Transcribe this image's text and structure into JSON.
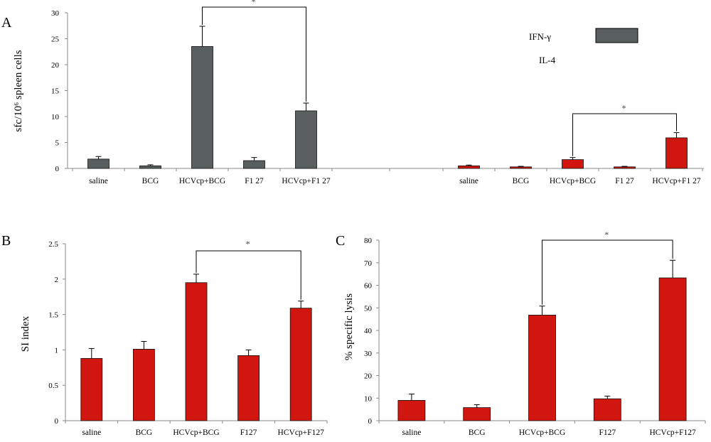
{
  "chart_data": [
    {
      "panel": "A",
      "type": "bar",
      "ylabel": "sfc/10⁶ spleen cells",
      "ylim": [
        0,
        30
      ],
      "yticks": [
        "0",
        "5",
        "10",
        "15",
        "20",
        "25",
        "30"
      ],
      "legend": {
        "entries": [
          "IFN-γ",
          "IL-4"
        ],
        "placement": "top-right"
      },
      "groups": [
        {
          "series": "IFN-γ",
          "color": "#595f5f",
          "categories": [
            "saline",
            "BCG",
            "HCVcp+BCG",
            "F1 27",
            "HCVcp+F1 27"
          ],
          "values": [
            1.8,
            0.5,
            23.5,
            1.5,
            11.1
          ],
          "errors": [
            0.5,
            0.2,
            3.9,
            0.6,
            1.5
          ]
        },
        {
          "series": "IL-4",
          "color": "#d0160e",
          "categories": [
            "saline",
            "BCG",
            "HCVcp+BCG",
            "F1 27",
            "HCVcp+F1 27"
          ],
          "values": [
            0.5,
            0.3,
            1.7,
            0.3,
            5.9
          ],
          "errors": [
            0.15,
            0.1,
            0.4,
            0.1,
            1.0
          ]
        }
      ],
      "significance": [
        {
          "group": 0,
          "from": 2,
          "to": 4,
          "label": "*"
        },
        {
          "group": 1,
          "from": 2,
          "to": 4,
          "label": "*"
        }
      ]
    },
    {
      "panel": "B",
      "type": "bar",
      "ylabel": "SI index",
      "ylim": [
        0,
        2.5
      ],
      "yticks": [
        "0",
        "0.5",
        "1",
        "1.5",
        "2",
        "2.5"
      ],
      "color": "#d0160e",
      "categories": [
        "saline",
        "BCG",
        "HCVcp+BCG",
        "F127",
        "HCVcp+F127"
      ],
      "values": [
        0.88,
        1.01,
        1.95,
        0.92,
        1.59
      ],
      "errors": [
        0.14,
        0.11,
        0.12,
        0.08,
        0.1
      ],
      "significance": [
        {
          "from": 2,
          "to": 4,
          "label": "*"
        }
      ]
    },
    {
      "panel": "C",
      "type": "bar",
      "ylabel": "% specific lysis",
      "ylim": [
        0,
        80
      ],
      "yticks": [
        "0",
        "10",
        "20",
        "30",
        "40",
        "50",
        "60",
        "70",
        "80"
      ],
      "color": "#d0160e",
      "categories": [
        "saline",
        "BCG",
        "HCVcp+BCG",
        "F127",
        "HCVcp+F127"
      ],
      "values": [
        9,
        5.8,
        46.8,
        9.7,
        63.3
      ],
      "errors": [
        2.8,
        1.3,
        4.0,
        1.2,
        7.8
      ],
      "significance": [
        {
          "from": 2,
          "to": 4,
          "label": "*"
        }
      ]
    }
  ]
}
